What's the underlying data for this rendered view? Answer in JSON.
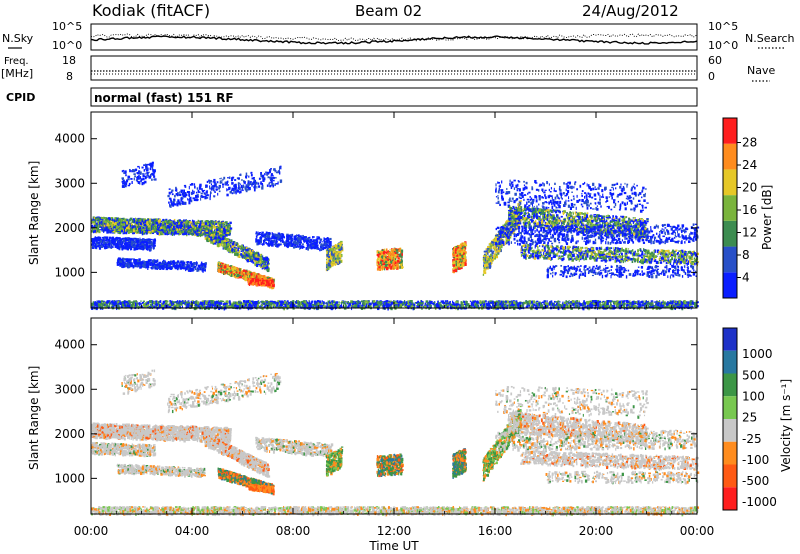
{
  "header": {
    "station": "Kodiak (fitACF)",
    "beam": "Beam 02",
    "date": "24/Aug/2012"
  },
  "top_panel": {
    "left_label": "N.Sky",
    "right_label": "N.Search",
    "left_ticks": [
      "10^5",
      "10^0"
    ],
    "right_ticks": [
      "10^5",
      "10^0"
    ]
  },
  "freq_panel": {
    "left_label_1": "Freq.",
    "left_label_2": "[MHz]",
    "right_label": "Nave",
    "left_ticks": [
      "18",
      "8"
    ],
    "right_ticks": [
      "60",
      "0"
    ]
  },
  "cpid": {
    "label": "CPID",
    "value": "normal (fast) 151 RF"
  },
  "chart_data": [
    {
      "type": "heatmap",
      "quantity": "power",
      "ylabel": "Slant Range [km]",
      "y_ticks": [
        "1000",
        "2000",
        "3000",
        "4000"
      ],
      "ylim": [
        200,
        4600
      ],
      "colorbar_label": "Power [dB]",
      "colorbar_ticks": [
        "4",
        "8",
        "12",
        "16",
        "20",
        "24",
        "28"
      ],
      "colorbar_colors": [
        "#0a1eff",
        "#2850c8",
        "#3c8c50",
        "#7ab43c",
        "#e6c828",
        "#ff8c1e",
        "#ff1e1e"
      ]
    },
    {
      "type": "heatmap",
      "quantity": "velocity",
      "ylabel": "Slant Range [km]",
      "y_ticks": [
        "1000",
        "2000",
        "3000",
        "4000"
      ],
      "ylim": [
        200,
        4600
      ],
      "colorbar_label": "Velocity [m s⁻¹]",
      "colorbar_ticks": [
        "1000",
        "500",
        "100",
        "25",
        "-25",
        "-100",
        "-500",
        "-1000"
      ],
      "colorbar_colors": [
        "#1e32c8",
        "#2878a0",
        "#3c9646",
        "#78c850",
        "#c8c8c8",
        "#ff8c1e",
        "#ff5a14",
        "#ff1e1e"
      ]
    }
  ],
  "x_axis": {
    "ticks": [
      "00:00",
      "04:00",
      "08:00",
      "12:00",
      "16:00",
      "20:00",
      "00:00"
    ],
    "label": "Time UT"
  }
}
